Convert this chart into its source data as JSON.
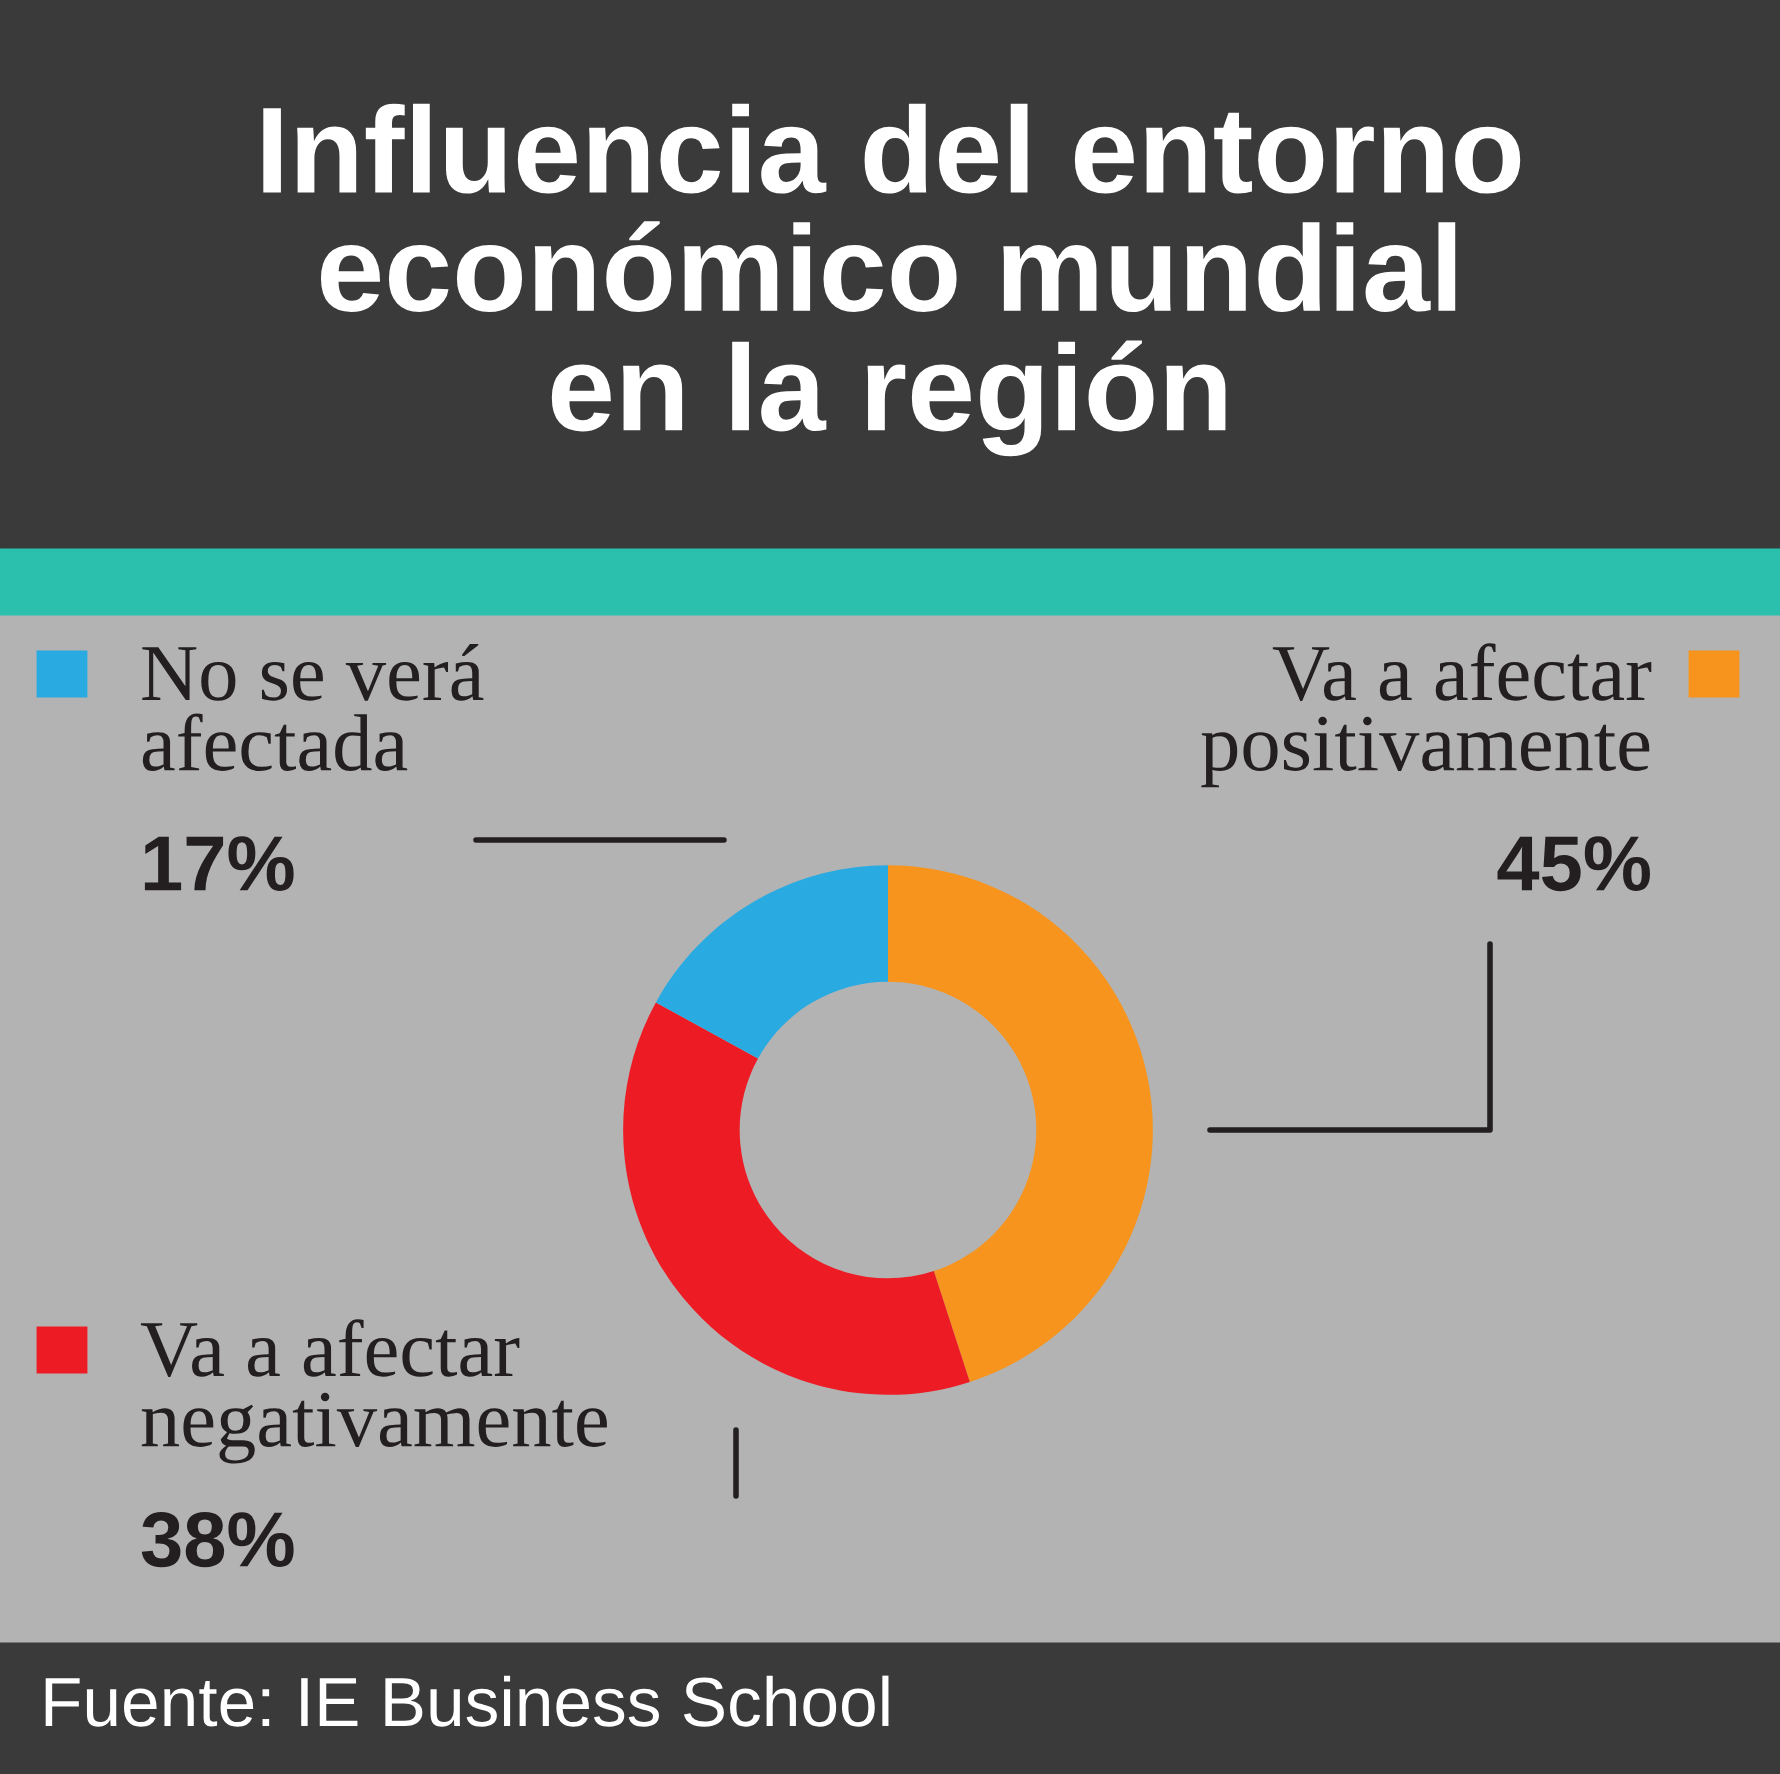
{
  "chart_data": {
    "type": "donut",
    "title": "Influencia del entorno\neconómico mundial\nen la región",
    "categories": [
      "Va a afectar\npositivamente",
      "Va a afectar\nnegativamente",
      "No se verá\nafectada"
    ],
    "values": [
      45,
      38,
      17
    ],
    "colors": [
      "#f7941d",
      "#ed1c24",
      "#29abe2"
    ],
    "value_labels": [
      "45%",
      "38%",
      "17%"
    ],
    "legend": "left",
    "annotations": [
      "Fuente: IE Business School"
    ]
  }
}
